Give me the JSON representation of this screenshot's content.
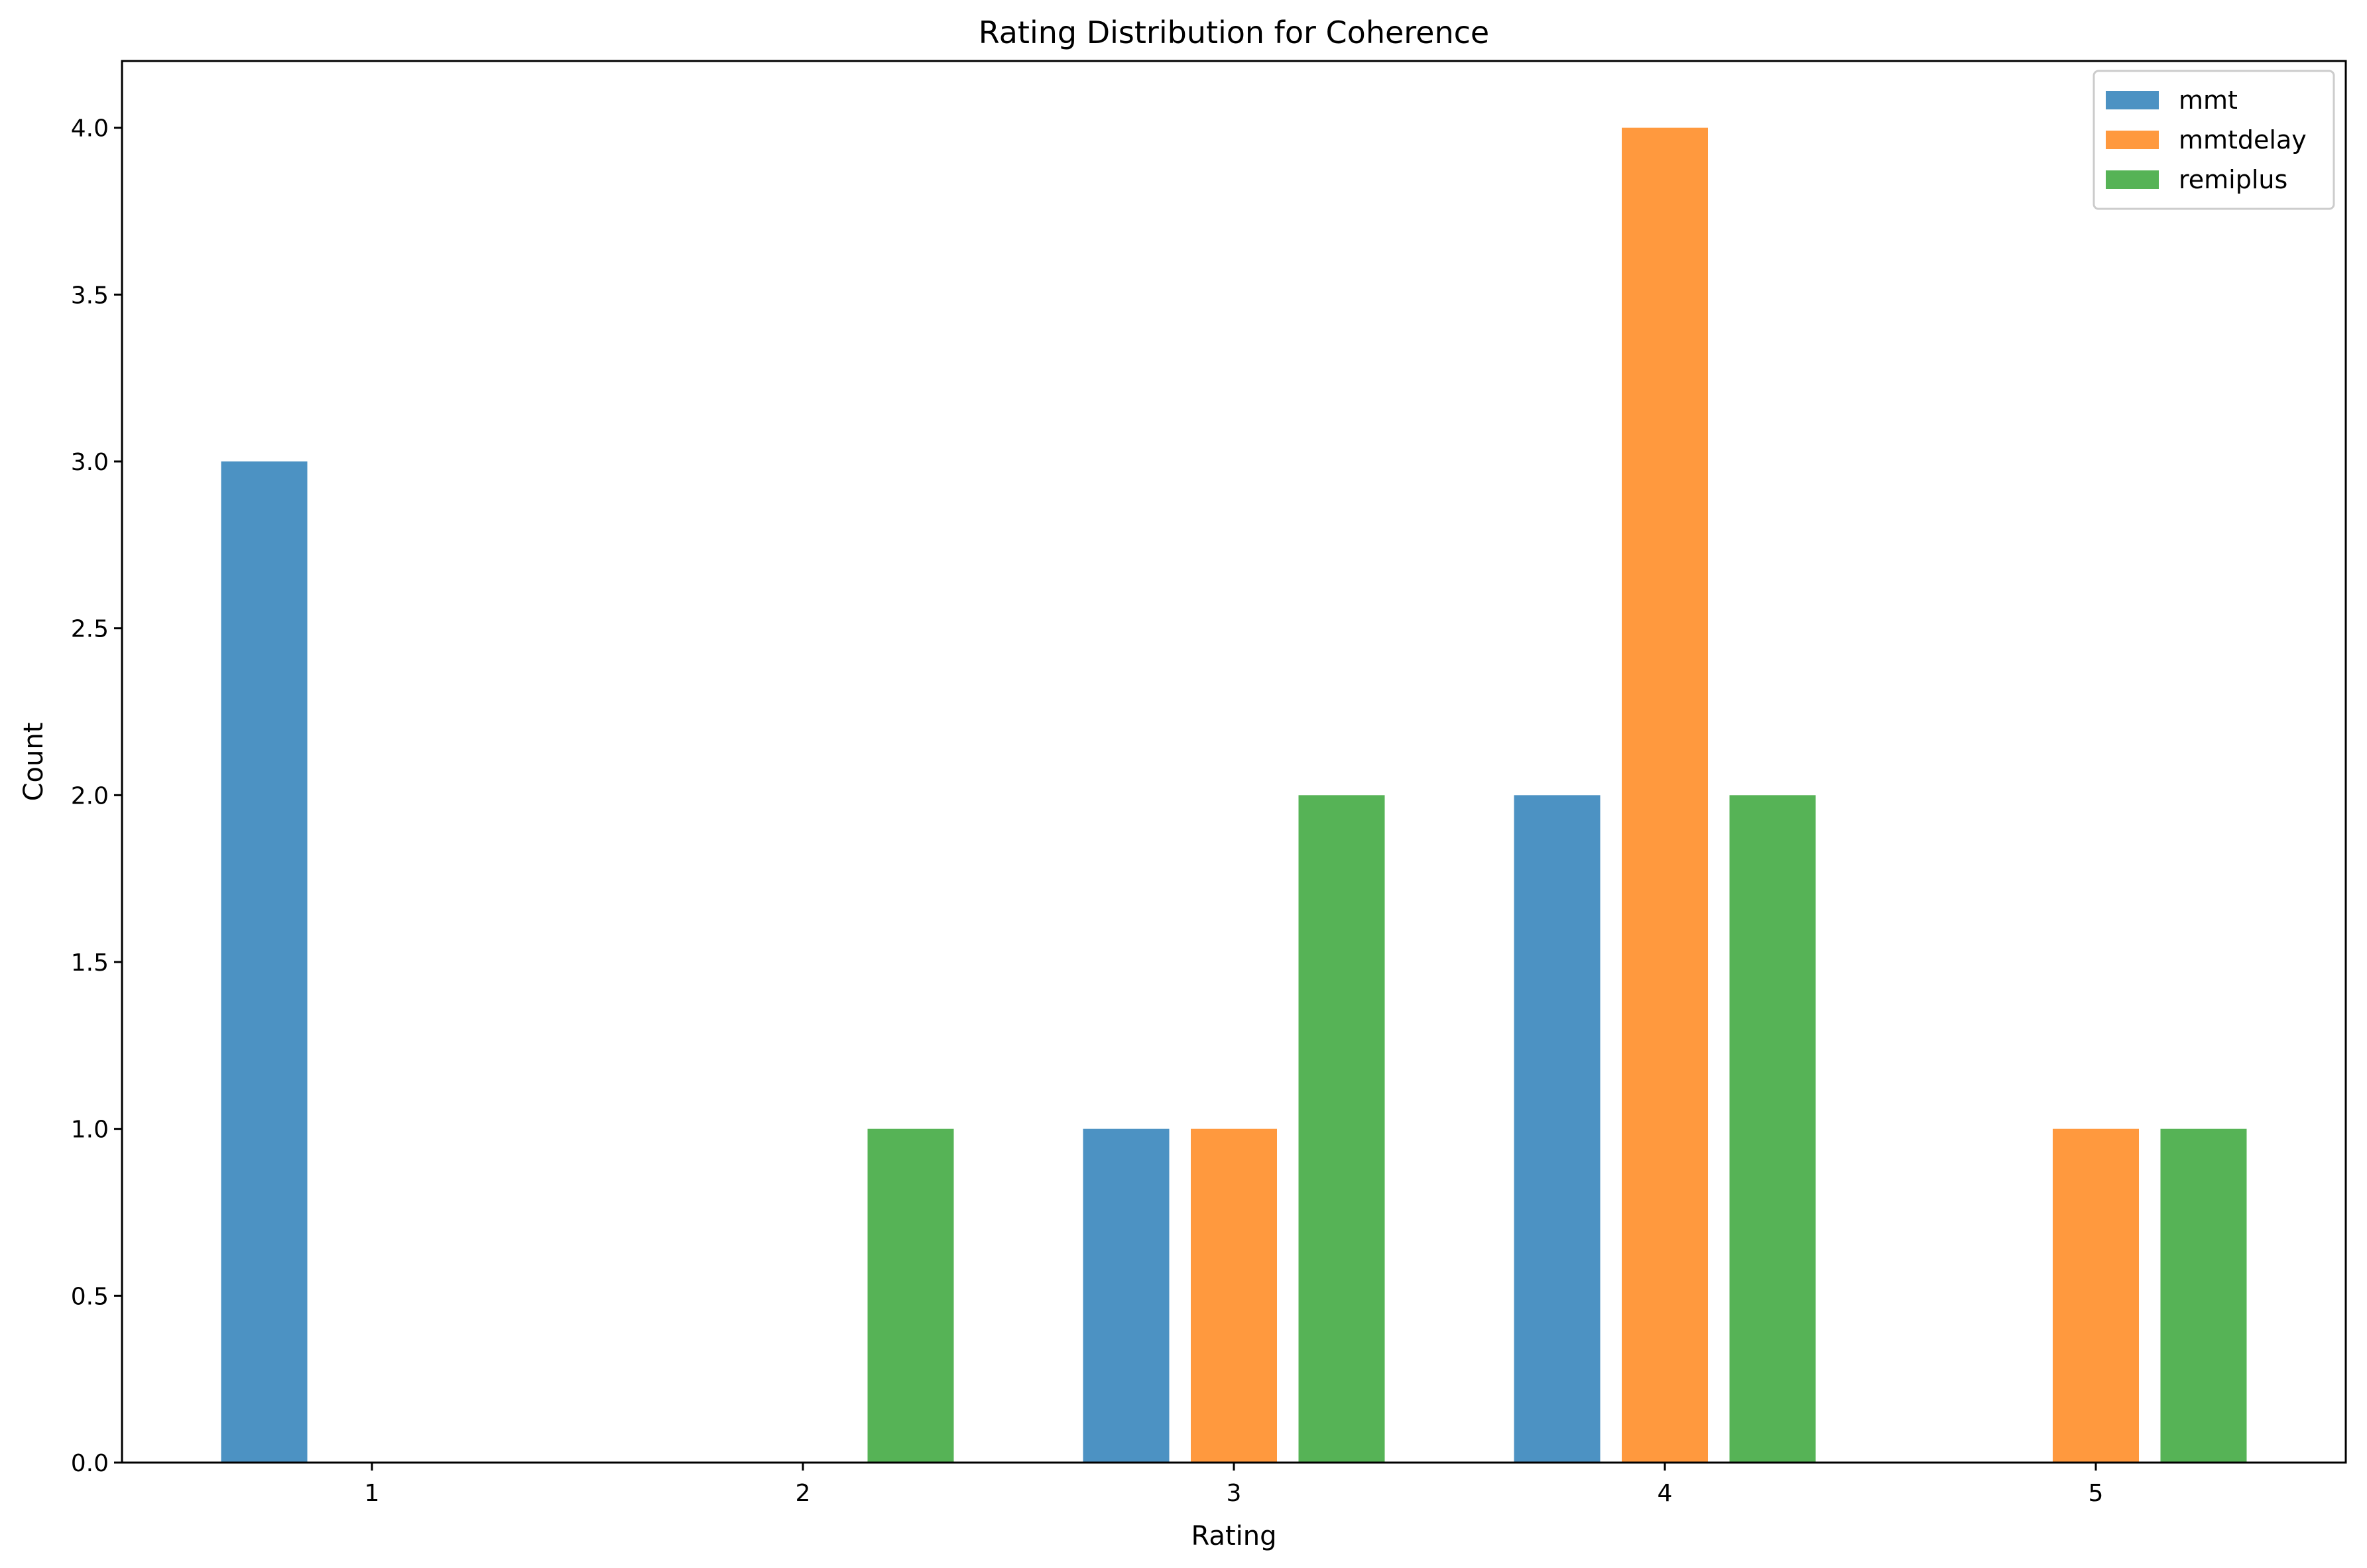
{
  "chart_data": {
    "type": "bar",
    "title": "Rating Distribution for Coherence",
    "xlabel": "Rating",
    "ylabel": "Count",
    "categories": [
      1,
      2,
      3,
      4,
      5
    ],
    "xticks": [
      "1",
      "2",
      "3",
      "4",
      "5"
    ],
    "yticks": [
      "0.0",
      "0.5",
      "1.0",
      "1.5",
      "2.0",
      "2.5",
      "3.0",
      "3.5",
      "4.0"
    ],
    "xlim": [
      0.42,
      5.58
    ],
    "ylim": [
      0,
      4.2
    ],
    "bar_width": 0.2,
    "series": [
      {
        "name": "mmt",
        "color": "#1f77b4",
        "offset": -0.25,
        "values": [
          3,
          0,
          1,
          2,
          0
        ]
      },
      {
        "name": "mmtdelay",
        "color": "#ff7f0e",
        "offset": 0,
        "values": [
          0,
          0,
          1,
          4,
          1
        ]
      },
      {
        "name": "remiplus",
        "color": "#2ca02c",
        "offset": 0.25,
        "values": [
          0,
          1,
          2,
          2,
          1
        ]
      }
    ],
    "bar_opacity": 0.8,
    "grid": false,
    "legend_position": "top-right"
  }
}
